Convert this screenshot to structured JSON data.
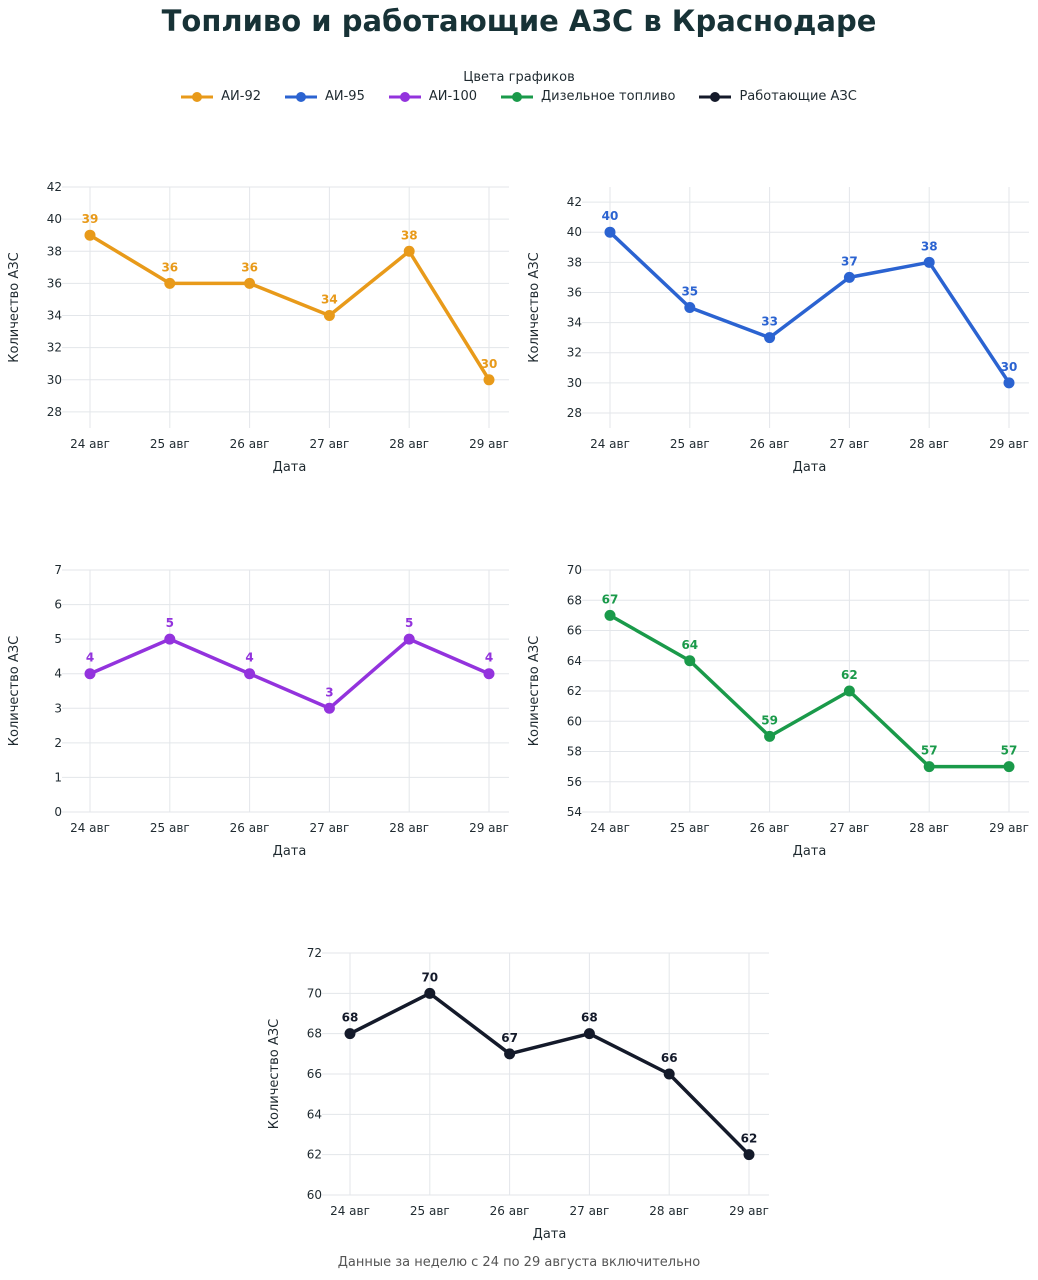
{
  "title": "Топливо и работающие АЗС в Краснодаре",
  "legend": {
    "title": "Цвета графиков",
    "items": [
      {
        "name": "АИ-92",
        "color": "#E89A1A"
      },
      {
        "name": "АИ-95",
        "color": "#2B63D1"
      },
      {
        "name": "АИ-100",
        "color": "#9333DD"
      },
      {
        "name": "Дизельное топливо",
        "color": "#1A9A4A"
      },
      {
        "name": "Работающие АЗС",
        "color": "#141A2A"
      }
    ]
  },
  "footer": "Данные за неделю с 24 по 29 августа включительно",
  "chart_data": [
    {
      "type": "line",
      "categories": [
        "24 авг",
        "25 авг",
        "26 авг",
        "27 авг",
        "28 авг",
        "29 авг"
      ],
      "values": [
        39,
        36,
        36,
        34,
        38,
        30
      ],
      "color": "#E89A1A",
      "xlabel": "Дата",
      "ylabel": "Количество АЗС",
      "ylim": [
        27,
        42
      ],
      "yticks": [
        28,
        30,
        32,
        34,
        36,
        38,
        40,
        42
      ],
      "grid": true
    },
    {
      "type": "line",
      "categories": [
        "24 авг",
        "25 авг",
        "26 авг",
        "27 авг",
        "28 авг",
        "29 авг"
      ],
      "values": [
        40,
        35,
        33,
        37,
        38,
        30
      ],
      "color": "#2B63D1",
      "xlabel": "Дата",
      "ylabel": "Количество АЗС",
      "ylim": [
        27,
        43
      ],
      "yticks": [
        28,
        30,
        32,
        34,
        36,
        38,
        40,
        42
      ],
      "grid": true
    },
    {
      "type": "line",
      "categories": [
        "24 авг",
        "25 авг",
        "26 авг",
        "27 авг",
        "28 авг",
        "29 авг"
      ],
      "values": [
        4,
        5,
        4,
        3,
        5,
        4
      ],
      "color": "#9333DD",
      "xlabel": "Дата",
      "ylabel": "Количество АЗС",
      "ylim": [
        0,
        7
      ],
      "yticks": [
        0,
        1,
        2,
        3,
        4,
        5,
        6,
        7
      ],
      "grid": true
    },
    {
      "type": "line",
      "categories": [
        "24 авг",
        "25 авг",
        "26 авг",
        "27 авг",
        "28 авг",
        "29 авг"
      ],
      "values": [
        67,
        64,
        59,
        62,
        57,
        57
      ],
      "color": "#1A9A4A",
      "xlabel": "Дата",
      "ylabel": "Количество АЗС",
      "ylim": [
        54,
        70
      ],
      "yticks": [
        54,
        56,
        58,
        60,
        62,
        64,
        66,
        68,
        70
      ],
      "grid": true
    },
    {
      "type": "line",
      "categories": [
        "24 авг",
        "25 авг",
        "26 авг",
        "27 авг",
        "28 авг",
        "29 авг"
      ],
      "values": [
        68,
        70,
        67,
        68,
        66,
        62
      ],
      "color": "#141A2A",
      "xlabel": "Дата",
      "ylabel": "Количество АЗС",
      "ylim": [
        60,
        72
      ],
      "yticks": [
        60,
        62,
        64,
        66,
        68,
        70,
        72
      ],
      "grid": true
    }
  ]
}
